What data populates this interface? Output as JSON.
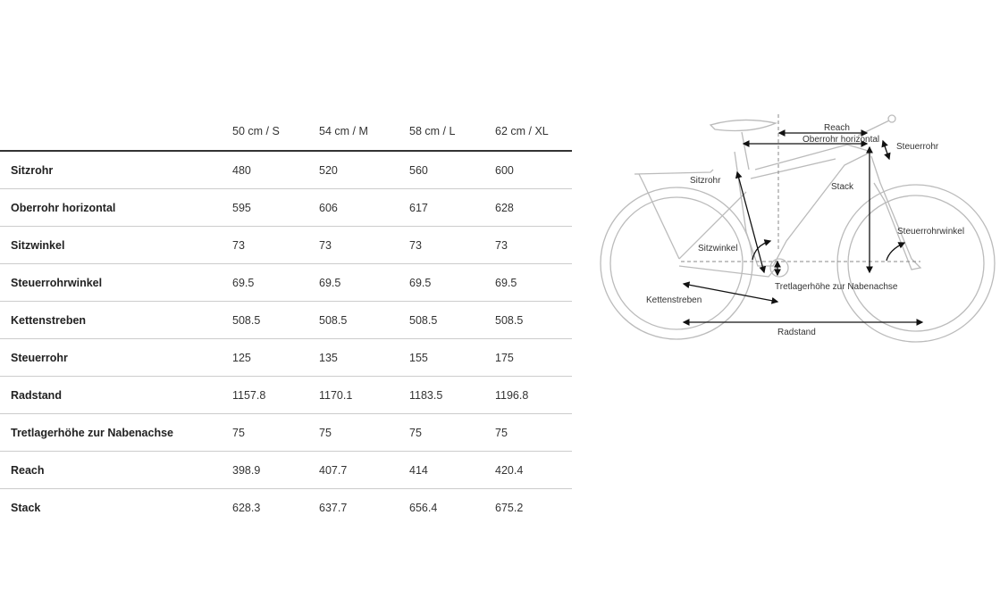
{
  "table": {
    "columns": [
      "50 cm / S",
      "54 cm / M",
      "58 cm / L",
      "62 cm / XL"
    ],
    "rows": [
      {
        "label": "Sitzrohr",
        "values": [
          "480",
          "520",
          "560",
          "600"
        ]
      },
      {
        "label": "Oberrohr horizontal",
        "values": [
          "595",
          "606",
          "617",
          "628"
        ]
      },
      {
        "label": "Sitzwinkel",
        "values": [
          "73",
          "73",
          "73",
          "73"
        ]
      },
      {
        "label": "Steuerrohrwinkel",
        "values": [
          "69.5",
          "69.5",
          "69.5",
          "69.5"
        ]
      },
      {
        "label": "Kettenstreben",
        "values": [
          "508.5",
          "508.5",
          "508.5",
          "508.5"
        ]
      },
      {
        "label": "Steuerrohr",
        "values": [
          "125",
          "135",
          "155",
          "175"
        ]
      },
      {
        "label": "Radstand",
        "values": [
          "1157.8",
          "1170.1",
          "1183.5",
          "1196.8"
        ]
      },
      {
        "label": "Tretlagerhöhe zur Nabenachse",
        "values": [
          "75",
          "75",
          "75",
          "75"
        ]
      },
      {
        "label": "Reach",
        "values": [
          "398.9",
          "407.7",
          "414",
          "420.4"
        ]
      },
      {
        "label": "Stack",
        "values": [
          "628.3",
          "637.7",
          "656.4",
          "675.2"
        ]
      }
    ]
  },
  "diagram": {
    "labels": {
      "reach": "Reach",
      "oberrohr": "Oberrohr horizontal",
      "steuerrohr": "Steuerrohr",
      "sitzrohr": "Sitzrohr",
      "stack": "Stack",
      "steuerrohrwinkel": "Steuerrohrwinkel",
      "sitzwinkel": "Sitzwinkel",
      "tretlager": "Tretlagerhöhe zur Nabenachse",
      "kettenstreben": "Kettenstreben",
      "radstand": "Radstand"
    }
  }
}
